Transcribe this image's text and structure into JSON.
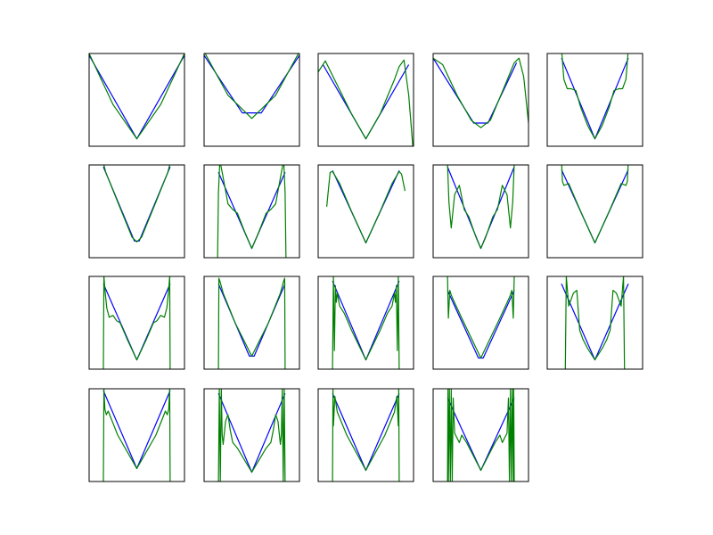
{
  "figure": {
    "colors": {
      "background": "#ffffff",
      "axes_edge": "#000000",
      "series_1": "#0000ff",
      "series_2": "#008000"
    },
    "grid": {
      "rows": 4,
      "cols": 5
    }
  },
  "chart_data": [
    {
      "type": "line",
      "xlim": [
        -1,
        1
      ],
      "ylim": [
        0,
        1
      ],
      "series": [
        {
          "color": "#0000ff",
          "x": [
            -1,
            0,
            1
          ],
          "y": [
            0.98,
            0.08,
            0.98
          ]
        },
        {
          "color": "#008000",
          "x": [
            -1,
            -0.5,
            0,
            0.5,
            1
          ],
          "y": [
            1.0,
            0.45,
            0.08,
            0.45,
            1.0
          ]
        }
      ]
    },
    {
      "type": "line",
      "xlim": [
        -1,
        1
      ],
      "ylim": [
        0,
        1
      ],
      "series": [
        {
          "color": "#0000ff",
          "x": [
            -1,
            -0.2,
            0.2,
            1
          ],
          "y": [
            0.98,
            0.36,
            0.36,
            0.98
          ]
        },
        {
          "color": "#008000",
          "x": [
            -1,
            -0.5,
            0,
            0.5,
            1
          ],
          "y": [
            1.02,
            0.55,
            0.3,
            0.55,
            1.02
          ]
        }
      ]
    },
    {
      "type": "line",
      "xlim": [
        -1,
        1
      ],
      "ylim": [
        0,
        1
      ],
      "series": [
        {
          "color": "#0000ff",
          "x": [
            -0.9,
            0,
            0.9
          ],
          "y": [
            0.88,
            0.08,
            0.88
          ]
        },
        {
          "color": "#008000",
          "x": [
            -1,
            -0.85,
            -0.6,
            -0.3,
            0,
            0.3,
            0.6,
            0.7,
            0.8,
            0.9,
            1
          ],
          "y": [
            0.8,
            0.92,
            0.66,
            0.35,
            0.08,
            0.35,
            0.72,
            0.86,
            0.93,
            0.55,
            -0.1
          ]
        }
      ]
    },
    {
      "type": "line",
      "xlim": [
        -1,
        1
      ],
      "ylim": [
        0,
        1
      ],
      "series": [
        {
          "color": "#0000ff",
          "x": [
            -1,
            -0.15,
            0.15,
            0.75
          ],
          "y": [
            0.95,
            0.25,
            0.25,
            0.9
          ]
        },
        {
          "color": "#008000",
          "x": [
            -1,
            -0.8,
            -0.5,
            -0.2,
            0,
            0.2,
            0.5,
            0.7,
            0.8,
            0.9,
            1
          ],
          "y": [
            0.95,
            0.88,
            0.55,
            0.28,
            0.2,
            0.28,
            0.65,
            0.9,
            0.95,
            0.75,
            0.25
          ]
        }
      ]
    },
    {
      "type": "line",
      "xlim": [
        -1,
        1
      ],
      "ylim": [
        0,
        1
      ],
      "series": [
        {
          "color": "#0000ff",
          "x": [
            -0.7,
            0,
            0.7
          ],
          "y": [
            0.95,
            0.08,
            0.95
          ]
        },
        {
          "color": "#008000",
          "x": [
            -0.7,
            -0.65,
            -0.58,
            -0.5,
            -0.4,
            -0.3,
            -0.15,
            0,
            0.15,
            0.3,
            0.4,
            0.5,
            0.58,
            0.65,
            0.7
          ],
          "y": [
            1.05,
            0.72,
            0.62,
            0.62,
            0.6,
            0.42,
            0.22,
            0.08,
            0.22,
            0.42,
            0.6,
            0.62,
            0.62,
            0.72,
            1.05
          ]
        }
      ]
    },
    {
      "type": "line",
      "xlim": [
        -1,
        1
      ],
      "ylim": [
        0,
        1
      ],
      "series": [
        {
          "color": "#0000ff",
          "x": [
            -0.7,
            -0.05,
            0.05,
            0.7
          ],
          "y": [
            0.98,
            0.18,
            0.18,
            0.98
          ]
        },
        {
          "color": "#008000",
          "x": [
            -0.7,
            -0.65,
            -0.4,
            -0.1,
            0,
            0.1,
            0.4,
            0.65,
            0.7
          ],
          "y": [
            1.02,
            0.92,
            0.6,
            0.22,
            0.17,
            0.22,
            0.6,
            0.92,
            1.02
          ]
        }
      ]
    },
    {
      "type": "line",
      "xlim": [
        -1,
        1
      ],
      "ylim": [
        0,
        1
      ],
      "series": [
        {
          "color": "#0000ff",
          "x": [
            -0.7,
            0,
            0.7
          ],
          "y": [
            0.92,
            0.1,
            0.92
          ]
        },
        {
          "color": "#008000",
          "x": [
            -0.72,
            -0.7,
            -0.67,
            -0.62,
            -0.5,
            -0.4,
            -0.3,
            -0.15,
            0,
            0.15,
            0.3,
            0.4,
            0.5,
            0.62,
            0.67,
            0.7,
            0.72
          ],
          "y": [
            -0.1,
            0.7,
            1.05,
            0.92,
            0.58,
            0.52,
            0.48,
            0.28,
            0.1,
            0.28,
            0.48,
            0.52,
            0.58,
            0.92,
            1.05,
            0.7,
            -0.1
          ]
        }
      ]
    },
    {
      "type": "line",
      "xlim": [
        -1,
        1
      ],
      "ylim": [
        0,
        1
      ],
      "series": [
        {
          "color": "#0000ff",
          "x": [
            -0.7,
            0,
            0.7
          ],
          "y": [
            0.94,
            0.16,
            0.94
          ]
        },
        {
          "color": "#008000",
          "x": [
            -0.82,
            -0.75,
            -0.7,
            -0.55,
            -0.3,
            0,
            0.3,
            0.55,
            0.7,
            0.75,
            0.82
          ],
          "y": [
            0.55,
            0.92,
            0.93,
            0.8,
            0.5,
            0.16,
            0.5,
            0.8,
            0.93,
            0.9,
            0.72
          ]
        }
      ]
    },
    {
      "type": "line",
      "xlim": [
        -1,
        1
      ],
      "ylim": [
        0,
        1
      ],
      "series": [
        {
          "color": "#0000ff",
          "x": [
            -0.7,
            0,
            0.7
          ],
          "y": [
            0.98,
            0.1,
            0.98
          ]
        },
        {
          "color": "#008000",
          "x": [
            -0.7,
            -0.67,
            -0.62,
            -0.55,
            -0.45,
            -0.35,
            -0.25,
            -0.1,
            0,
            0.1,
            0.25,
            0.35,
            0.45,
            0.55,
            0.62,
            0.67,
            0.7
          ],
          "y": [
            1.02,
            0.6,
            0.32,
            0.68,
            0.78,
            0.52,
            0.44,
            0.22,
            0.1,
            0.22,
            0.44,
            0.52,
            0.78,
            0.68,
            0.32,
            0.6,
            1.02
          ]
        }
      ]
    },
    {
      "type": "line",
      "xlim": [
        -1,
        1
      ],
      "ylim": [
        0,
        1
      ],
      "series": [
        {
          "color": "#0000ff",
          "x": [
            -0.7,
            0,
            0.7
          ],
          "y": [
            0.95,
            0.16,
            0.95
          ]
        },
        {
          "color": "#008000",
          "x": [
            -0.7,
            -0.68,
            -0.65,
            -0.55,
            -0.3,
            0,
            0.3,
            0.55,
            0.65,
            0.68,
            0.7
          ],
          "y": [
            1.05,
            0.82,
            0.78,
            0.8,
            0.5,
            0.16,
            0.5,
            0.8,
            0.78,
            0.82,
            1.05
          ]
        }
      ]
    },
    {
      "type": "line",
      "xlim": [
        -1,
        1
      ],
      "ylim": [
        0,
        1
      ],
      "series": [
        {
          "color": "#0000ff",
          "x": [
            -0.7,
            0,
            0.7
          ],
          "y": [
            0.92,
            0.1,
            0.92
          ]
        },
        {
          "color": "#008000",
          "x": [
            -0.7,
            -0.69,
            -0.67,
            -0.63,
            -0.58,
            -0.5,
            -0.42,
            -0.35,
            -0.2,
            0,
            0.2,
            0.35,
            0.42,
            0.5,
            0.58,
            0.63,
            0.67,
            0.69,
            0.7
          ],
          "y": [
            0,
            1.0,
            0.86,
            0.66,
            0.56,
            0.58,
            0.52,
            0.5,
            0.32,
            0.1,
            0.32,
            0.5,
            0.52,
            0.58,
            0.56,
            0.66,
            0.86,
            1.0,
            0
          ]
        }
      ]
    },
    {
      "type": "line",
      "xlim": [
        -1,
        1
      ],
      "ylim": [
        0,
        1
      ],
      "series": [
        {
          "color": "#0000ff",
          "x": [
            -0.7,
            -0.05,
            0.05,
            0.7
          ],
          "y": [
            0.92,
            0.14,
            0.14,
            0.92
          ]
        },
        {
          "color": "#008000",
          "x": [
            -0.7,
            -0.69,
            -0.67,
            -0.6,
            -0.35,
            0,
            0.35,
            0.6,
            0.67,
            0.69,
            0.7
          ],
          "y": [
            0,
            0.98,
            0.95,
            0.82,
            0.5,
            0.14,
            0.5,
            0.82,
            0.95,
            0.98,
            0
          ]
        }
      ]
    },
    {
      "type": "line",
      "xlim": [
        -1,
        1
      ],
      "ylim": [
        0,
        1
      ],
      "series": [
        {
          "color": "#0000ff",
          "x": [
            -0.7,
            0,
            0.7
          ],
          "y": [
            0.95,
            0.1,
            0.95
          ]
        },
        {
          "color": "#008000",
          "x": [
            -0.7,
            -0.68,
            -0.66,
            -0.64,
            -0.62,
            -0.6,
            -0.55,
            -0.45,
            -0.3,
            0,
            0.3,
            0.45,
            0.55,
            0.6,
            0.62,
            0.64,
            0.66,
            0.68,
            0.7
          ],
          "y": [
            0,
            1.0,
            0.2,
            0.9,
            0.72,
            0.82,
            0.68,
            0.6,
            0.42,
            0.1,
            0.42,
            0.6,
            0.68,
            0.82,
            0.72,
            0.9,
            0.2,
            1.0,
            0
          ]
        }
      ]
    },
    {
      "type": "line",
      "xlim": [
        -1,
        1
      ],
      "ylim": [
        0,
        1
      ],
      "series": [
        {
          "color": "#0000ff",
          "x": [
            -0.7,
            -0.05,
            0.05,
            0.7
          ],
          "y": [
            0.85,
            0.12,
            0.12,
            0.85
          ]
        },
        {
          "color": "#008000",
          "x": [
            -0.7,
            -0.68,
            -0.65,
            -0.62,
            -0.58,
            -0.4,
            0,
            0.4,
            0.58,
            0.62,
            0.65,
            0.68,
            0.7
          ],
          "y": [
            1.0,
            0.55,
            0.85,
            0.8,
            0.75,
            0.55,
            0.12,
            0.55,
            0.75,
            0.8,
            0.85,
            0.55,
            1.0
          ]
        }
      ]
    },
    {
      "type": "line",
      "xlim": [
        -1,
        1
      ],
      "ylim": [
        0,
        1
      ],
      "series": [
        {
          "color": "#0000ff",
          "x": [
            -0.7,
            0,
            0.7
          ],
          "y": [
            0.92,
            0.1,
            0.92
          ]
        },
        {
          "color": "#008000",
          "x": [
            -0.62,
            -0.6,
            -0.55,
            -0.45,
            -0.38,
            -0.32,
            -0.25,
            -0.15,
            0,
            0.15,
            0.25,
            0.32,
            0.38,
            0.45,
            0.55,
            0.6,
            0.62
          ],
          "y": [
            0,
            1.0,
            0.68,
            0.82,
            0.85,
            0.42,
            0.32,
            0.22,
            0.1,
            0.22,
            0.32,
            0.42,
            0.85,
            0.82,
            0.68,
            1.0,
            0
          ]
        }
      ]
    },
    {
      "type": "line",
      "xlim": [
        -1,
        1
      ],
      "ylim": [
        0,
        1
      ],
      "series": [
        {
          "color": "#0000ff",
          "x": [
            -0.7,
            0,
            0.7
          ],
          "y": [
            0.98,
            0.14,
            0.98
          ]
        },
        {
          "color": "#008000",
          "x": [
            -0.7,
            -0.69,
            -0.67,
            -0.64,
            -0.6,
            -0.4,
            0,
            0.4,
            0.6,
            0.64,
            0.67,
            0.69,
            0.7
          ],
          "y": [
            0,
            1.0,
            0.78,
            0.72,
            0.76,
            0.5,
            0.14,
            0.5,
            0.76,
            0.72,
            0.78,
            1.0,
            0
          ]
        }
      ]
    },
    {
      "type": "line",
      "xlim": [
        -1,
        1
      ],
      "ylim": [
        0,
        1
      ],
      "series": [
        {
          "color": "#0000ff",
          "x": [
            -0.7,
            0,
            0.7
          ],
          "y": [
            0.95,
            0.1,
            0.95
          ]
        },
        {
          "color": "#008000",
          "x": [
            -0.7,
            -0.68,
            -0.66,
            -0.64,
            -0.62,
            -0.6,
            -0.55,
            -0.5,
            -0.45,
            -0.4,
            -0.3,
            0,
            0.3,
            0.4,
            0.45,
            0.5,
            0.55,
            0.6,
            0.62,
            0.64,
            0.66,
            0.68,
            0.7
          ],
          "y": [
            0,
            1.0,
            0,
            1.0,
            0.5,
            0.4,
            0.65,
            0.72,
            0.55,
            0.42,
            0.36,
            0.1,
            0.36,
            0.42,
            0.55,
            0.72,
            0.65,
            0.4,
            0.5,
            1.0,
            0,
            1.0,
            0
          ]
        }
      ]
    },
    {
      "type": "line",
      "xlim": [
        -1,
        1
      ],
      "ylim": [
        0,
        1
      ],
      "series": [
        {
          "color": "#0000ff",
          "x": [
            -0.7,
            0,
            0.7
          ],
          "y": [
            0.95,
            0.12,
            0.95
          ]
        },
        {
          "color": "#008000",
          "x": [
            -0.7,
            -0.69,
            -0.68,
            -0.65,
            -0.6,
            -0.4,
            0,
            0.4,
            0.6,
            0.65,
            0.68,
            0.69,
            0.7
          ],
          "y": [
            0,
            1.0,
            0.6,
            0.92,
            0.75,
            0.5,
            0.12,
            0.5,
            0.75,
            0.92,
            0.6,
            1.0,
            0
          ]
        }
      ]
    },
    {
      "type": "line",
      "xlim": [
        -1,
        1
      ],
      "ylim": [
        0,
        1
      ],
      "series": [
        {
          "color": "#0000ff",
          "x": [
            -0.7,
            0,
            0.7
          ],
          "y": [
            0.9,
            0.12,
            0.9
          ]
        },
        {
          "color": "#008000",
          "x": [
            -0.7,
            -0.69,
            -0.68,
            -0.66,
            -0.64,
            -0.62,
            -0.6,
            -0.58,
            -0.55,
            -0.45,
            -0.4,
            -0.3,
            0,
            0.3,
            0.4,
            0.45,
            0.55,
            0.58,
            0.6,
            0.62,
            0.64,
            0.66,
            0.68,
            0.69,
            0.7
          ],
          "y": [
            0,
            1.0,
            0,
            1.0,
            0,
            1.0,
            0,
            0.9,
            0.52,
            0.42,
            0.5,
            0.42,
            0.12,
            0.42,
            0.5,
            0.42,
            0.52,
            0.9,
            0,
            1.0,
            0,
            1.0,
            0,
            1.0,
            0
          ]
        }
      ]
    }
  ]
}
